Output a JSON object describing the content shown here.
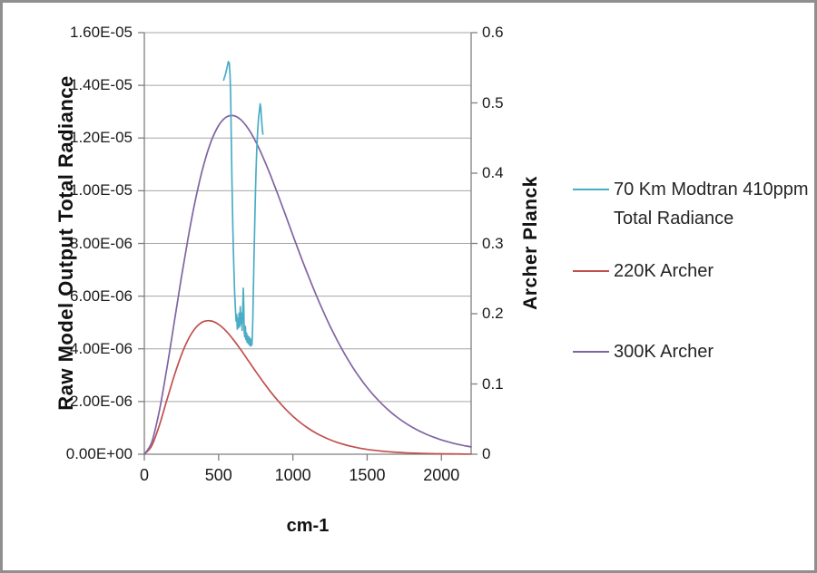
{
  "chart_data": {
    "type": "line",
    "title": "",
    "grid": true,
    "x_axis": {
      "title": "cm-1",
      "min": 0,
      "max": 2200,
      "ticks": [
        0,
        500,
        1000,
        1500,
        2000
      ]
    },
    "y_axis_left": {
      "title": "Raw Model Output Total Radiance",
      "min": 0,
      "max": 1.6e-05,
      "tick_labels": [
        "1.60E-05",
        "1.40E-05",
        "1.20E-05",
        "1.00E-05",
        "8.00E-06",
        "6.00E-06",
        "4.00E-06",
        "2.00E-06",
        "0.00E+00"
      ]
    },
    "y_axis_right": {
      "title": "Archer Planck",
      "min": 0,
      "max": 0.6,
      "tick_labels": [
        "0.6",
        "0.5",
        "0.4",
        "0.3",
        "0.2",
        "0.1",
        "0"
      ]
    },
    "series": [
      {
        "name": "70 Km Modtran 410ppm Total Radiance",
        "axis": "left",
        "color": "#4BACC6",
        "points": [
          [
            534,
            1.42e-05
          ],
          [
            545,
            1.44e-05
          ],
          [
            556,
            1.465e-05
          ],
          [
            565,
            1.49e-05
          ],
          [
            572,
            1.485e-05
          ],
          [
            577,
            1.44e-05
          ],
          [
            581,
            1.36e-05
          ],
          [
            585,
            1.22e-05
          ],
          [
            590,
            1.04e-05
          ],
          [
            596,
            8.6e-06
          ],
          [
            602,
            7.2e-06
          ],
          [
            608,
            6.1e-06
          ],
          [
            614,
            5.4e-06
          ],
          [
            618,
            5.05e-06
          ],
          [
            622,
            5.3e-06
          ],
          [
            626,
            4.75e-06
          ],
          [
            630,
            5.15e-06
          ],
          [
            634,
            4.8e-06
          ],
          [
            638,
            5.35e-06
          ],
          [
            642,
            4.85e-06
          ],
          [
            646,
            5.6e-06
          ],
          [
            650,
            4.95e-06
          ],
          [
            654,
            5.35e-06
          ],
          [
            658,
            4.7e-06
          ],
          [
            662,
            5.3e-06
          ],
          [
            666,
            6.3e-06
          ],
          [
            669,
            5.7e-06
          ],
          [
            672,
            4.65e-06
          ],
          [
            676,
            4.45e-06
          ],
          [
            680,
            4.85e-06
          ],
          [
            684,
            4.35e-06
          ],
          [
            688,
            4.6e-06
          ],
          [
            692,
            4.25e-06
          ],
          [
            696,
            4.5e-06
          ],
          [
            700,
            4.2e-06
          ],
          [
            704,
            4.45e-06
          ],
          [
            708,
            4.15e-06
          ],
          [
            712,
            4.4e-06
          ],
          [
            716,
            4.1e-06
          ],
          [
            720,
            4.35e-06
          ],
          [
            724,
            4.15e-06
          ],
          [
            727,
            4.5e-06
          ],
          [
            730,
            5.1e-06
          ],
          [
            734,
            6.2e-06
          ],
          [
            739,
            7.6e-06
          ],
          [
            745,
            9.2e-06
          ],
          [
            751,
            1.06e-05
          ],
          [
            757,
            1.16e-05
          ],
          [
            763,
            1.23e-05
          ],
          [
            769,
            1.275e-05
          ],
          [
            775,
            1.305e-05
          ],
          [
            780,
            1.33e-05
          ],
          [
            784,
            1.315e-05
          ],
          [
            788,
            1.28e-05
          ],
          [
            793,
            1.24e-05
          ],
          [
            798,
            1.215e-05
          ]
        ]
      },
      {
        "name": "220K Archer",
        "axis": "right",
        "color": "#C0504D",
        "x_start": 0,
        "x_step": 50,
        "values": [
          0,
          0.0121,
          0.0405,
          0.0758,
          0.1109,
          0.1416,
          0.1653,
          0.181,
          0.1889,
          0.1897,
          0.1848,
          0.1754,
          0.1629,
          0.1485,
          0.1332,
          0.1178,
          0.1029,
          0.0888,
          0.076,
          0.0643,
          0.0541,
          0.0451,
          0.0374,
          0.0308,
          0.0253,
          0.0206,
          0.0167,
          0.0135,
          0.0108,
          0.0087,
          0.0069,
          0.0055,
          0.0044,
          0.0035,
          0.0027,
          0.0021,
          0.0017,
          0.0013,
          0.001,
          0.0008,
          0.0006,
          0.0005,
          0.0004,
          0.0003,
          0.0002
        ]
      },
      {
        "name": "300K Archer",
        "axis": "right",
        "color": "#8064A2",
        "x_start": 0,
        "x_step": 50,
        "values": [
          0,
          0.0173,
          0.0608,
          0.1199,
          0.186,
          0.2524,
          0.3142,
          0.3681,
          0.4122,
          0.4454,
          0.4677,
          0.4796,
          0.4819,
          0.476,
          0.4632,
          0.4448,
          0.4222,
          0.3966,
          0.369,
          0.3405,
          0.3117,
          0.2834,
          0.256,
          0.2299,
          0.2054,
          0.1825,
          0.1614,
          0.1422,
          0.1247,
          0.109,
          0.0949,
          0.0824,
          0.0713,
          0.0615,
          0.0529,
          0.0454,
          0.0389,
          0.0332,
          0.0283,
          0.0241,
          0.0204,
          0.0173,
          0.0146,
          0.0124,
          0.0104
        ]
      }
    ],
    "legend_position": "right"
  },
  "legend": {
    "entries": [
      {
        "label_line1": "70 Km Modtran 410ppm",
        "label_line2": "Total Radiance",
        "color": "#4BACC6"
      },
      {
        "label_line1": "220K Archer",
        "label_line2": "",
        "color": "#C0504D"
      },
      {
        "label_line1": "300K Archer",
        "label_line2": "",
        "color": "#8064A2"
      }
    ]
  },
  "style": {
    "gridline_color": "#a6a6a6",
    "axis_line_color": "#7f7f7f",
    "background": "#ffffff",
    "border_color": "#8f8f8f"
  }
}
